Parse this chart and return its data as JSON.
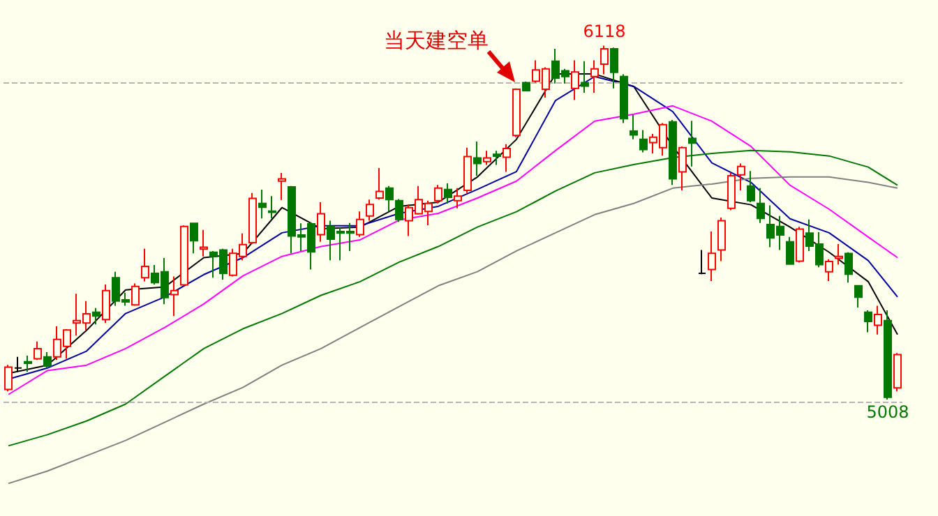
{
  "chart_data": {
    "type": "candlestick",
    "categories": [
      null,
      null,
      null,
      null,
      null,
      null,
      null,
      null,
      null,
      null,
      null,
      null,
      null,
      null,
      null,
      null,
      null,
      null,
      null,
      null,
      null,
      null,
      null,
      null,
      null,
      null,
      null,
      null,
      null,
      null,
      null,
      null,
      null,
      null,
      null,
      null,
      null,
      null,
      null,
      null,
      null,
      null,
      null,
      null,
      null,
      null,
      null,
      null,
      null,
      null,
      null,
      null,
      null,
      null,
      null,
      null,
      null,
      null,
      null,
      null,
      null,
      null,
      null,
      null,
      null,
      null,
      null,
      null,
      null,
      null,
      null,
      null,
      null,
      null,
      null,
      null,
      null,
      null,
      null,
      null,
      null,
      null,
      null,
      null,
      null,
      null,
      null,
      null,
      null,
      null,
      null,
      null
    ],
    "ohlc": [
      [
        5040,
        5117,
        5034,
        5110
      ],
      [
        5107,
        5142,
        5095,
        5107
      ],
      [
        5127,
        5146,
        5095,
        5122
      ],
      [
        5136,
        5190,
        5132,
        5168
      ],
      [
        5142,
        5157,
        5107,
        5113
      ],
      [
        5142,
        5238,
        5132,
        5197
      ],
      [
        5175,
        5229,
        5136,
        5226
      ],
      [
        5248,
        5340,
        5209,
        5256
      ],
      [
        5248,
        5317,
        5226,
        5277
      ],
      [
        5282,
        5295,
        5244,
        5270
      ],
      [
        5259,
        5369,
        5248,
        5350
      ],
      [
        5390,
        5409,
        5302,
        5317
      ],
      [
        5321,
        5343,
        5302,
        5314
      ],
      [
        5305,
        5372,
        5302,
        5363
      ],
      [
        5390,
        5481,
        5379,
        5426
      ],
      [
        5404,
        5430,
        5369,
        5375
      ],
      [
        5409,
        5452,
        5307,
        5328
      ],
      [
        5337,
        5394,
        5270,
        5350
      ],
      [
        5368,
        5554,
        5365,
        5551
      ],
      [
        5561,
        5561,
        5467,
        5506
      ],
      [
        5480,
        5540,
        5457,
        5486
      ],
      [
        5470,
        5474,
        5390,
        5457
      ],
      [
        5477,
        5481,
        5384,
        5404
      ],
      [
        5398,
        5481,
        5394,
        5467
      ],
      [
        5457,
        5529,
        5445,
        5494
      ],
      [
        5500,
        5656,
        5496,
        5639
      ],
      [
        5623,
        5666,
        5576,
        5611
      ],
      [
        5599,
        5646,
        5576,
        5595
      ],
      [
        5693,
        5719,
        5634,
        5700
      ],
      [
        5675,
        5678,
        5467,
        5521
      ],
      [
        5524,
        5561,
        5474,
        5518
      ],
      [
        5559,
        5564,
        5416,
        5471
      ],
      [
        5525,
        5627,
        5503,
        5591
      ],
      [
        5551,
        5569,
        5445,
        5511
      ],
      [
        5535,
        5547,
        5445,
        5530
      ],
      [
        5535,
        5562,
        5474,
        5530
      ],
      [
        5525,
        5598,
        5518,
        5573
      ],
      [
        5584,
        5635,
        5569,
        5620
      ],
      [
        5640,
        5734,
        5635,
        5661
      ],
      [
        5671,
        5678,
        5598,
        5635
      ],
      [
        5632,
        5637,
        5565,
        5573
      ],
      [
        5569,
        5620,
        5521,
        5610
      ],
      [
        5591,
        5678,
        5588,
        5635
      ],
      [
        5598,
        5632,
        5555,
        5623
      ],
      [
        5632,
        5681,
        5623,
        5671
      ],
      [
        5667,
        5686,
        5623,
        5642
      ],
      [
        5632,
        5671,
        5608,
        5646
      ],
      [
        5664,
        5798,
        5656,
        5770
      ],
      [
        5766,
        5817,
        5710,
        5748
      ],
      [
        5754,
        5788,
        5744,
        5766
      ],
      [
        5777,
        5788,
        5744,
        5771
      ],
      [
        5768,
        5809,
        5722,
        5795
      ],
      [
        5836,
        5984,
        5831,
        5981
      ],
      [
        6002,
        6005,
        5975,
        5977
      ],
      [
        6006,
        6072,
        6002,
        6042
      ],
      [
        5981,
        6050,
        5955,
        6045
      ],
      [
        6069,
        6108,
        5999,
        6016
      ],
      [
        6039,
        6045,
        5999,
        6021
      ],
      [
        5984,
        6072,
        5948,
        6035
      ],
      [
        6002,
        6069,
        5970,
        5991
      ],
      [
        6021,
        6072,
        5970,
        6045
      ],
      [
        6060,
        6118,
        6028,
        6108
      ],
      [
        6108,
        6112,
        5984,
        6034
      ],
      [
        6021,
        6028,
        5875,
        5889
      ],
      [
        5850,
        5900,
        5824,
        5838
      ],
      [
        5824,
        5853,
        5783,
        5792
      ],
      [
        5814,
        5841,
        5780,
        5831
      ],
      [
        5798,
        5875,
        5773,
        5870
      ],
      [
        5879,
        5885,
        5681,
        5700
      ],
      [
        5722,
        5802,
        5664,
        5798
      ],
      [
        5827,
        5882,
        5739,
        5812
      ],
      [
        5404,
        5477,
        5401,
        5404
      ],
      [
        5416,
        5535,
        5380,
        5467
      ],
      [
        5477,
        5579,
        5442,
        5569
      ],
      [
        5608,
        5719,
        5602,
        5710
      ],
      [
        5713,
        5748,
        5664,
        5739
      ],
      [
        5678,
        5725,
        5627,
        5632
      ],
      [
        5623,
        5671,
        5562,
        5576
      ],
      [
        5557,
        5617,
        5486,
        5515
      ],
      [
        5551,
        5584,
        5477,
        5524
      ],
      [
        5503,
        5518,
        5431,
        5433
      ],
      [
        5442,
        5550,
        5438,
        5543
      ],
      [
        5530,
        5573,
        5474,
        5489
      ],
      [
        5496,
        5533,
        5423,
        5431
      ],
      [
        5409,
        5448,
        5380,
        5441
      ],
      [
        5451,
        5496,
        5431,
        5457
      ],
      [
        5466,
        5470,
        5375,
        5401
      ],
      [
        5365,
        5365,
        5297,
        5329
      ],
      [
        5282,
        5288,
        5219,
        5253
      ],
      [
        5241,
        5302,
        5212,
        5275
      ],
      [
        5256,
        5288,
        5008,
        5015
      ],
      [
        5045,
        5154,
        5034,
        5149
      ]
    ],
    "series": [
      {
        "type": "line",
        "color": "#000000",
        "values": [
          5090,
          null,
          null,
          null,
          5116,
          null,
          null,
          null,
          5225,
          null,
          null,
          null,
          5352,
          null,
          null,
          null,
          5361,
          null,
          null,
          null,
          5453,
          null,
          null,
          null,
          5466,
          null,
          null,
          null,
          5610,
          null,
          null,
          null,
          5544,
          null,
          null,
          null,
          5549,
          null,
          null,
          null,
          5614,
          null,
          null,
          null,
          5627,
          null,
          null,
          null,
          5706,
          null,
          null,
          null,
          5824,
          null,
          null,
          null,
          6029,
          null,
          null,
          null,
          6029,
          null,
          null,
          null,
          5990,
          null,
          null,
          null,
          5802,
          null,
          null,
          null,
          5640,
          null,
          null,
          null,
          5619,
          null,
          null,
          null,
          5549,
          null,
          null,
          null,
          5470,
          null,
          null,
          null,
          5378,
          null,
          null,
          5212
        ]
      },
      {
        "type": "line",
        "color": "#0000a0",
        "values": [
          5072,
          null,
          null,
          null,
          5107,
          null,
          null,
          null,
          5160,
          null,
          null,
          null,
          5278,
          null,
          null,
          null,
          5330,
          null,
          null,
          null,
          5400,
          null,
          null,
          null,
          5453,
          null,
          null,
          null,
          5531,
          null,
          null,
          null,
          5553,
          null,
          null,
          null,
          5553,
          null,
          null,
          null,
          5592,
          null,
          null,
          null,
          5614,
          null,
          null,
          null,
          5667,
          null,
          null,
          null,
          5723,
          null,
          null,
          null,
          5946,
          null,
          null,
          null,
          6021,
          null,
          null,
          null,
          5990,
          null,
          null,
          null,
          5911,
          null,
          null,
          null,
          5750,
          null,
          null,
          null,
          5689,
          null,
          null,
          null,
          5575,
          null,
          null,
          null,
          5531,
          null,
          null,
          null,
          5444,
          null,
          null,
          5330
        ]
      },
      {
        "type": "line",
        "color": "#ff00ff",
        "values": [
          5024,
          null,
          null,
          null,
          5099,
          null,
          null,
          null,
          5116,
          null,
          null,
          null,
          5168,
          null,
          null,
          null,
          5234,
          null,
          null,
          null,
          5308,
          null,
          null,
          null,
          5396,
          null,
          null,
          null,
          5457,
          null,
          null,
          null,
          5488,
          null,
          null,
          null,
          5509,
          null,
          null,
          null,
          5571,
          null,
          null,
          null,
          5592,
          null,
          null,
          null,
          5640,
          null,
          null,
          null,
          5693,
          null,
          null,
          null,
          5789,
          null,
          null,
          null,
          5881,
          null,
          null,
          null,
          5903,
          null,
          null,
          null,
          5929,
          null,
          null,
          null,
          5881,
          null,
          null,
          null,
          5802,
          null,
          null,
          null,
          5680,
          null,
          null,
          null,
          5605,
          null,
          null,
          null,
          5518,
          null,
          null,
          5453
        ]
      },
      {
        "type": "line",
        "color": "#007800",
        "values": [
          4863,
          null,
          null,
          null,
          4898,
          null,
          null,
          null,
          4941,
          null,
          null,
          null,
          4994,
          null,
          null,
          null,
          5081,
          null,
          null,
          null,
          5168,
          null,
          null,
          null,
          5230,
          null,
          null,
          null,
          5278,
          null,
          null,
          null,
          5335,
          null,
          null,
          null,
          5378,
          null,
          null,
          null,
          5439,
          null,
          null,
          null,
          5488,
          null,
          null,
          null,
          5549,
          null,
          null,
          null,
          5597,
          null,
          null,
          null,
          5662,
          null,
          null,
          null,
          5719,
          null,
          null,
          null,
          5745,
          null,
          null,
          null,
          5767,
          null,
          null,
          null,
          5780,
          null,
          null,
          null,
          5789,
          null,
          null,
          null,
          5785,
          null,
          null,
          null,
          5772,
          null,
          null,
          null,
          5737,
          null,
          null,
          5680
        ]
      },
      {
        "type": "line",
        "color": "#808080",
        "values": [
          4745,
          null,
          null,
          null,
          4784,
          null,
          null,
          null,
          4832,
          null,
          null,
          null,
          4880,
          null,
          null,
          null,
          4937,
          null,
          null,
          null,
          4994,
          null,
          null,
          null,
          5046,
          null,
          null,
          null,
          5116,
          null,
          null,
          null,
          5168,
          null,
          null,
          null,
          5234,
          null,
          null,
          null,
          5300,
          null,
          null,
          null,
          5365,
          null,
          null,
          null,
          5409,
          null,
          null,
          null,
          5474,
          null,
          null,
          null,
          5531,
          null,
          null,
          null,
          5588,
          null,
          null,
          null,
          5623,
          null,
          null,
          null,
          5671,
          null,
          null,
          null,
          5684,
          null,
          null,
          null,
          5702,
          null,
          null,
          null,
          5706,
          null,
          null,
          null,
          5706,
          null,
          null,
          null,
          5689,
          null,
          null,
          5671
        ]
      }
    ],
    "ref_lines": [
      {
        "axis": "y",
        "value": 6000,
        "label": null,
        "color": "#b4b4b4",
        "line_style": "dashed"
      },
      {
        "axis": "y",
        "value": 5000,
        "label": null,
        "color": "#b4b4b4",
        "line_style": "dashed"
      }
    ],
    "annotations": [
      {
        "text": "当天建空单",
        "y": 5984
      },
      {
        "text": "6118",
        "y": 6118
      },
      {
        "text": "5008",
        "y": 5008
      }
    ]
  }
}
